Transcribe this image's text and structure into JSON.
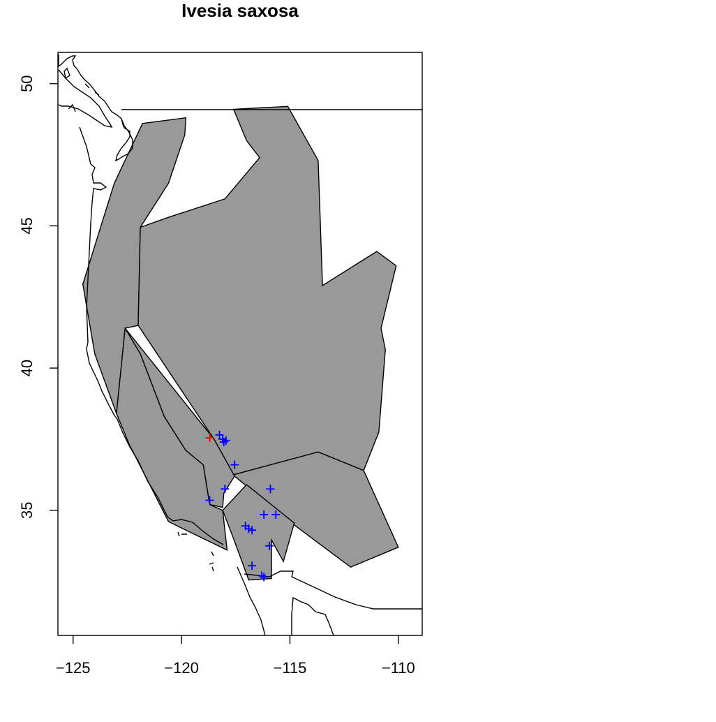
{
  "chart_data": {
    "type": "map",
    "title": "Ivesia saxosa",
    "xlabel": "",
    "ylabel": "",
    "xlim": [
      -125.7,
      -108.9
    ],
    "ylim": [
      30.6,
      51.1
    ],
    "x_ticks": [
      -125,
      -120,
      -115,
      -110
    ],
    "x_tick_labels": [
      "−125",
      "−120",
      "−115",
      "−110"
    ],
    "y_ticks": [
      35,
      40,
      45,
      50
    ],
    "y_tick_labels": [
      "35",
      "40",
      "45",
      "50"
    ],
    "grid": false,
    "region_fill": "#999999",
    "region_stroke": "#000000",
    "occurrence_color": "#0000ff",
    "highlight_color": "#ff0000",
    "occurrences": [
      {
        "lon": -118.25,
        "lat": 37.65
      },
      {
        "lon": -118.1,
        "lat": 37.5
      },
      {
        "lon": -118.05,
        "lat": 37.4
      },
      {
        "lon": -117.95,
        "lat": 37.45
      },
      {
        "lon": -117.55,
        "lat": 36.6
      },
      {
        "lon": -118.0,
        "lat": 35.75
      },
      {
        "lon": -115.9,
        "lat": 35.75
      },
      {
        "lon": -118.7,
        "lat": 35.35
      },
      {
        "lon": -116.2,
        "lat": 34.85
      },
      {
        "lon": -115.65,
        "lat": 34.85
      },
      {
        "lon": -117.05,
        "lat": 34.45
      },
      {
        "lon": -116.9,
        "lat": 34.35
      },
      {
        "lon": -116.75,
        "lat": 34.3
      },
      {
        "lon": -115.95,
        "lat": 33.75
      },
      {
        "lon": -116.75,
        "lat": 33.05
      },
      {
        "lon": -116.3,
        "lat": 32.7
      },
      {
        "lon": -116.2,
        "lat": 32.65
      }
    ],
    "highlighted": [
      {
        "lon": -118.7,
        "lat": 37.55
      }
    ],
    "regions": [
      {
        "name": "cascade-sierra-west",
        "lonlat": [
          [
            -124.55,
            42.95
          ],
          [
            -123.1,
            46.5
          ],
          [
            -121.8,
            48.6
          ],
          [
            -119.8,
            48.8
          ],
          [
            -119.85,
            48.2
          ],
          [
            -120.6,
            46.5
          ],
          [
            -121.9,
            44.95
          ],
          [
            -122.0,
            41.5
          ],
          [
            -122.6,
            41.4
          ],
          [
            -123.0,
            38.4
          ],
          [
            -124.0,
            40.5
          ],
          [
            -124.55,
            42.95
          ]
        ]
      },
      {
        "name": "great-basin-plateau",
        "lonlat": [
          [
            -121.9,
            44.95
          ],
          [
            -120.6,
            45.3
          ],
          [
            -118.0,
            45.95
          ],
          [
            -116.4,
            47.4
          ],
          [
            -117.0,
            48.0
          ],
          [
            -117.6,
            49.1
          ],
          [
            -115.1,
            49.2
          ],
          [
            -113.7,
            47.3
          ],
          [
            -113.5,
            42.9
          ],
          [
            -111.0,
            44.1
          ],
          [
            -110.1,
            43.6
          ],
          [
            -110.8,
            41.4
          ],
          [
            -110.6,
            40.65
          ],
          [
            -110.9,
            37.75
          ],
          [
            -111.6,
            36.4
          ],
          [
            -113.7,
            37.05
          ],
          [
            -117.6,
            36.25
          ],
          [
            -118.5,
            37.5
          ],
          [
            -122.0,
            41.5
          ],
          [
            -121.9,
            44.95
          ]
        ]
      },
      {
        "name": "sierra-foothills",
        "lonlat": [
          [
            -122.6,
            41.4
          ],
          [
            -118.5,
            37.5
          ],
          [
            -117.55,
            36.2
          ],
          [
            -118.05,
            35.6
          ],
          [
            -118.1,
            35.1
          ],
          [
            -118.7,
            35.2
          ],
          [
            -119.0,
            36.6
          ],
          [
            -119.8,
            37.1
          ],
          [
            -120.8,
            38.3
          ],
          [
            -121.9,
            40.5
          ],
          [
            -122.6,
            41.4
          ]
        ]
      },
      {
        "name": "coast-ranges",
        "lonlat": [
          [
            -123.0,
            38.4
          ],
          [
            -122.6,
            41.4
          ],
          [
            -121.9,
            40.5
          ],
          [
            -120.8,
            38.3
          ],
          [
            -119.8,
            37.1
          ],
          [
            -119.0,
            36.6
          ],
          [
            -118.7,
            35.2
          ],
          [
            -118.1,
            35.0
          ],
          [
            -117.9,
            33.6
          ],
          [
            -120.6,
            34.6
          ],
          [
            -122.4,
            37.3
          ],
          [
            -123.0,
            38.4
          ]
        ]
      },
      {
        "name": "mojave",
        "lonlat": [
          [
            -117.55,
            36.2
          ],
          [
            -115.1,
            34.65
          ],
          [
            -112.2,
            33.0
          ],
          [
            -110.0,
            33.7
          ],
          [
            -111.6,
            36.4
          ],
          [
            -113.7,
            37.05
          ],
          [
            -117.6,
            36.25
          ],
          [
            -117.55,
            36.2
          ]
        ]
      },
      {
        "name": "peninsular-ranges",
        "lonlat": [
          [
            -118.1,
            35.0
          ],
          [
            -117.0,
            35.9
          ],
          [
            -114.8,
            34.55
          ],
          [
            -115.3,
            33.2
          ],
          [
            -115.85,
            33.95
          ],
          [
            -115.85,
            32.6
          ],
          [
            -116.9,
            32.55
          ],
          [
            -117.6,
            34.0
          ],
          [
            -118.1,
            35.0
          ]
        ]
      }
    ]
  }
}
